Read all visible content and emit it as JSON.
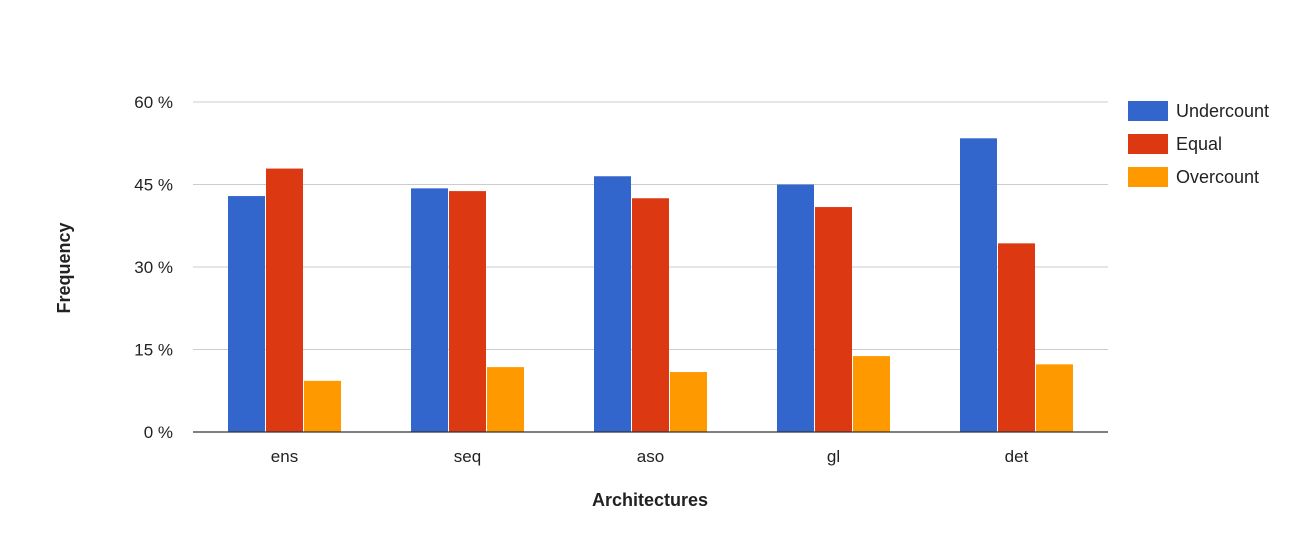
{
  "chart_data": {
    "type": "bar",
    "title": "",
    "xlabel": "Architectures",
    "ylabel": "Frequency",
    "categories": [
      "ens",
      "seq",
      "aso",
      "gl",
      "det"
    ],
    "series": [
      {
        "name": "Undercount",
        "color": "#3366cc",
        "values": [
          42.9,
          44.3,
          46.5,
          45.0,
          53.4
        ]
      },
      {
        "name": "Equal",
        "color": "#dc3912",
        "values": [
          47.9,
          43.8,
          42.5,
          40.9,
          34.3
        ]
      },
      {
        "name": "Overcount",
        "color": "#ff9900",
        "values": [
          9.3,
          11.8,
          10.9,
          13.8,
          12.3
        ]
      }
    ],
    "ylim": [
      0,
      60
    ],
    "yticks": [
      0,
      15,
      30,
      45,
      60
    ],
    "ytick_labels": [
      "0 %",
      "15 %",
      "30 %",
      "45 %",
      "60 %"
    ],
    "grid": true,
    "legend_position": "right"
  }
}
